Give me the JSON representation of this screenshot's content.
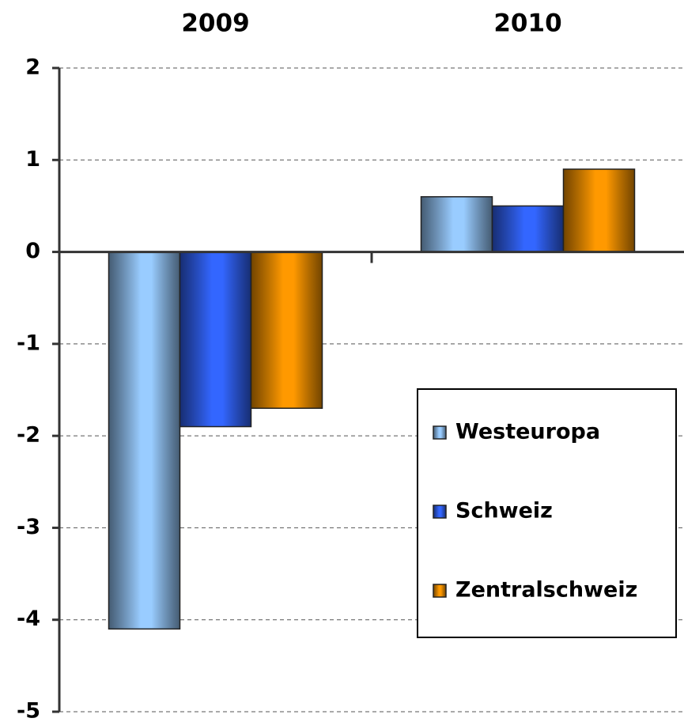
{
  "chart_data": {
    "type": "bar",
    "categories": [
      "2009",
      "2010"
    ],
    "series": [
      {
        "name": "Westeuropa",
        "color": "#99ccff",
        "values": [
          -4.1,
          0.6
        ]
      },
      {
        "name": "Schweiz",
        "color": "#3366ff",
        "values": [
          -1.9,
          0.5
        ]
      },
      {
        "name": "Zentralschweiz",
        "color": "#ff9900",
        "values": [
          -1.7,
          0.9
        ]
      }
    ],
    "ylim": [
      -5,
      2
    ],
    "yticks": [
      -5,
      -4,
      -3,
      -2,
      -1,
      0,
      1,
      2
    ],
    "grid": true
  }
}
